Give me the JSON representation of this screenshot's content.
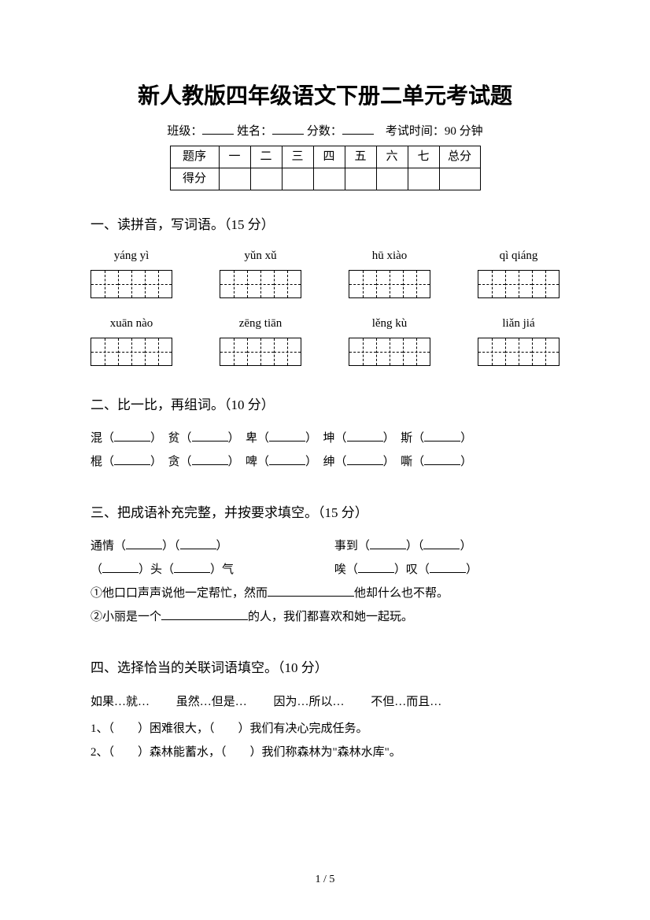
{
  "title": "新人教版四年级语文下册二单元考试题",
  "info": {
    "class_label": "班级：",
    "name_label": "姓名：",
    "score_label": "分数：",
    "time_label": "考试时间：90 分钟"
  },
  "score_table": {
    "row1": [
      "题序",
      "一",
      "二",
      "三",
      "四",
      "五",
      "六",
      "七",
      "总分"
    ],
    "row2_label": "得分"
  },
  "section1": {
    "heading": "一、读拼音，写词语。（15 分）",
    "row1": [
      "yáng yì",
      "yǔn xǔ",
      "hū xiào",
      "qì qiáng"
    ],
    "row2": [
      "xuān nào",
      "zēng tiān",
      "lěng kù",
      "liǎn jiá"
    ]
  },
  "section2": {
    "heading": "二、比一比，再组词。（10 分）",
    "row1": [
      "混（",
      "）　贫（",
      "）　卑（",
      "）　坤（",
      "）　斯（",
      "）"
    ],
    "row2": [
      "棍（",
      "）　贪（",
      "）　啤（",
      "）　绅（",
      "）　嘶（",
      "）"
    ]
  },
  "section3": {
    "heading": "三、把成语补充完整，并按要求填空。（15 分）",
    "line1_left_a": "通情（",
    "line1_left_b": "）（",
    "line1_left_c": "）",
    "line1_right_a": "事到（",
    "line1_right_b": "）（",
    "line1_right_c": "）",
    "line2_left_a": "（",
    "line2_left_b": "）头（",
    "line2_left_c": "）气",
    "line2_right_a": "唉（",
    "line2_right_b": "）叹（",
    "line2_right_c": "）",
    "line3_a": "①他口口声声说他一定帮忙，然而",
    "line3_b": "他却什么也不帮。",
    "line4_a": "②小丽是一个",
    "line4_b": "的人，我们都喜欢和她一起玩。"
  },
  "section4": {
    "heading": "四、选择恰当的关联词语填空。（10 分）",
    "words": [
      "如果…就…",
      "虽然…但是…",
      "因为…所以…",
      "不但…而且…"
    ],
    "q1_a": "1、（",
    "q1_b": "）困难很大，（",
    "q1_c": "）我们有决心完成任务。",
    "q2_a": "2、（",
    "q2_b": "）森林能蓄水，（",
    "q2_c": "）我们称森林为\"森林水库\"。"
  },
  "page_number": "1 / 5"
}
